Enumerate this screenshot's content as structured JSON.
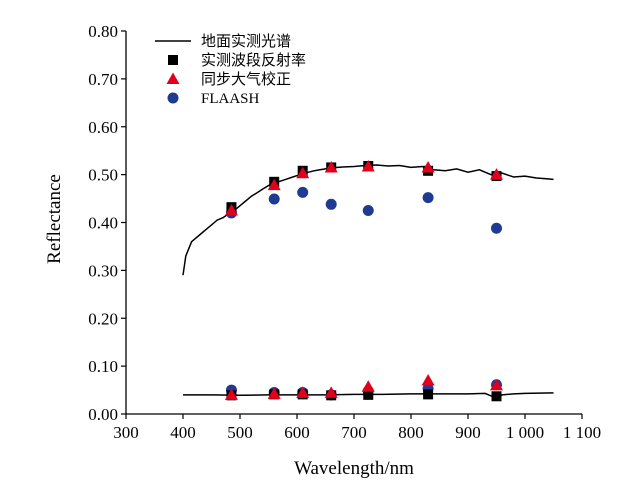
{
  "chart_data": {
    "type": "line",
    "title": "",
    "xlabel": "Wavelength/nm",
    "ylabel": "Reflectance",
    "xlim": [
      300,
      1100
    ],
    "ylim": [
      0,
      0.8
    ],
    "x_ticks": [
      300,
      400,
      500,
      600,
      700,
      800,
      900,
      1000,
      1100
    ],
    "x_tick_labels": [
      "300",
      "400",
      "500",
      "600",
      "700",
      "800",
      "900",
      "1 000",
      "1 100"
    ],
    "y_ticks": [
      0,
      0.1,
      0.2,
      0.3,
      0.4,
      0.5,
      0.6,
      0.7,
      0.8
    ],
    "y_tick_labels": [
      "0.00",
      "0.10",
      "0.20",
      "0.30",
      "0.40",
      "0.50",
      "0.60",
      "0.70",
      "0.80"
    ],
    "grid": false,
    "legend_position": "top-left",
    "colors": {
      "measured_spectrum": "#000000",
      "band_reflectance": "#000000",
      "synchronous_correction": "#e0001b",
      "flaash": "#1f3a93"
    },
    "series": [
      {
        "name": "地面实测光谱",
        "kind": "line",
        "marker": "none",
        "curves": [
          {
            "x": [
              400,
              405,
              410,
              415,
              420,
              430,
              440,
              450,
              460,
              470,
              480,
              490,
              500,
              510,
              520,
              530,
              540,
              550,
              560,
              570,
              580,
              590,
              600,
              610,
              620,
              630,
              640,
              650,
              660,
              680,
              700,
              720,
              740,
              760,
              780,
              800,
              820,
              840,
              860,
              880,
              900,
              920,
              940,
              960,
              980,
              1000,
              1020,
              1040,
              1050
            ],
            "y": [
              0.29,
              0.33,
              0.345,
              0.36,
              0.365,
              0.375,
              0.385,
              0.395,
              0.405,
              0.41,
              0.418,
              0.425,
              0.435,
              0.445,
              0.455,
              0.462,
              0.47,
              0.477,
              0.482,
              0.486,
              0.49,
              0.494,
              0.498,
              0.502,
              0.505,
              0.508,
              0.51,
              0.512,
              0.514,
              0.516,
              0.517,
              0.519,
              0.52,
              0.518,
              0.519,
              0.515,
              0.517,
              0.51,
              0.508,
              0.512,
              0.505,
              0.51,
              0.5,
              0.503,
              0.495,
              0.497,
              0.493,
              0.491,
              0.49
            ]
          },
          {
            "x": [
              400,
              450,
              500,
              550,
              600,
              650,
              700,
              750,
              800,
              850,
              900,
              930,
              950,
              960,
              980,
              1000,
              1050
            ],
            "y": [
              0.04,
              0.04,
              0.039,
              0.04,
              0.04,
              0.04,
              0.041,
              0.041,
              0.042,
              0.042,
              0.042,
              0.043,
              0.033,
              0.04,
              0.042,
              0.043,
              0.044
            ]
          }
        ]
      },
      {
        "name": "实测波段反射率",
        "kind": "scatter",
        "marker": "square",
        "x": [
          485,
          560,
          610,
          660,
          725,
          830,
          950,
          485,
          560,
          610,
          660,
          725,
          830,
          950
        ],
        "y": [
          0.432,
          0.485,
          0.508,
          0.515,
          0.518,
          0.508,
          0.497,
          0.039,
          0.041,
          0.041,
          0.039,
          0.04,
          0.041,
          0.037
        ]
      },
      {
        "name": "同步大气校正",
        "kind": "scatter",
        "marker": "triangle",
        "x": [
          485,
          560,
          610,
          660,
          725,
          830,
          950,
          485,
          560,
          610,
          660,
          725,
          830,
          950
        ],
        "y": [
          0.425,
          0.478,
          0.503,
          0.515,
          0.517,
          0.515,
          0.5,
          0.04,
          0.042,
          0.044,
          0.044,
          0.057,
          0.07,
          0.06
        ]
      },
      {
        "name": "FLAASH",
        "kind": "scatter",
        "marker": "circle",
        "x": [
          485,
          560,
          610,
          660,
          725,
          830,
          950,
          485,
          560,
          610,
          660,
          725,
          830,
          950
        ],
        "y": [
          0.42,
          0.449,
          0.463,
          0.438,
          0.425,
          0.452,
          0.388,
          0.05,
          0.045,
          0.045,
          0.04,
          0.048,
          0.053,
          0.061
        ]
      }
    ]
  }
}
